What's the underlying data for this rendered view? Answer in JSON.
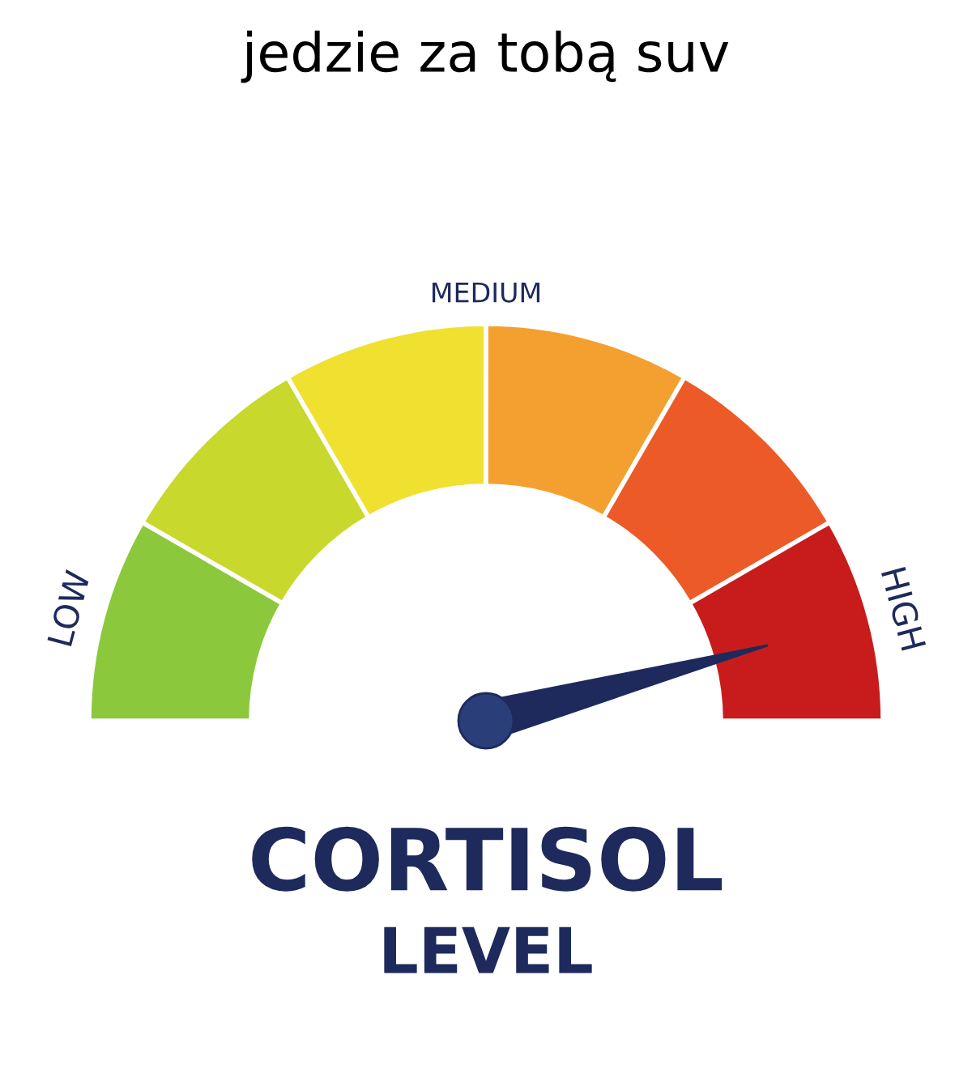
{
  "chart_data": {
    "type": "donut",
    "title": "jedzie za tobą suv",
    "categories": [
      "LOW",
      null,
      null,
      null,
      null,
      "HIGH"
    ],
    "values": [
      16.67,
      16.67,
      16.67,
      16.67,
      16.66,
      16.67
    ],
    "colors": [
      "#8cc83c",
      "#c8d82c",
      "#f0e030",
      "#f4a030",
      "#ec5a28",
      "#c81c1c"
    ],
    "needle": "HIGH",
    "annotations": [
      "MEDIUM",
      "CORTISOL",
      "LEVEL"
    ]
  }
}
